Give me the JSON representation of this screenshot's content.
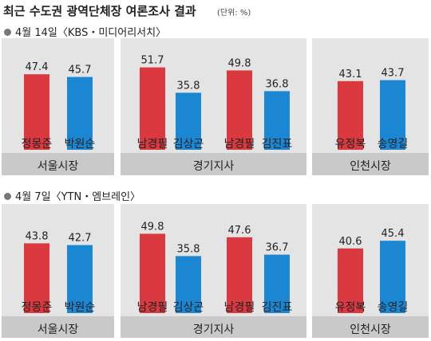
{
  "title": "최근 수도권 광역단체장 여론조사 결과",
  "unit": "(단위: %)",
  "colors": {
    "red": "#d9393f",
    "blue": "#1b87d2",
    "panel_bg": "#e4e4e4",
    "region_bar": "#c9c9c9"
  },
  "chart_data": {
    "type": "bar",
    "polls": [
      {
        "title": "4월 14일〈KBS・미디어리서치〉",
        "regions": [
          {
            "name": "서울시장",
            "candidates": [
              {
                "name": "정몽준",
                "value": 47.4,
                "party_color": "red"
              },
              {
                "name": "박원순",
                "value": 45.7,
                "party_color": "blue"
              }
            ]
          },
          {
            "name": "경기지사",
            "candidates": [
              {
                "name": "남경필",
                "value": 51.7,
                "party_color": "red"
              },
              {
                "name": "김상곤",
                "value": 35.8,
                "party_color": "blue"
              },
              {
                "name": "남경필",
                "value": 49.8,
                "party_color": "red"
              },
              {
                "name": "김진표",
                "value": 36.8,
                "party_color": "blue"
              }
            ]
          },
          {
            "name": "인천시장",
            "candidates": [
              {
                "name": "유정복",
                "value": 43.1,
                "party_color": "red"
              },
              {
                "name": "송영길",
                "value": 43.7,
                "party_color": "blue"
              }
            ]
          }
        ]
      },
      {
        "title": "4월 7일〈YTN・엠브레인〉",
        "regions": [
          {
            "name": "서울시장",
            "candidates": [
              {
                "name": "정몽준",
                "value": 43.8,
                "party_color": "red"
              },
              {
                "name": "박원순",
                "value": 42.7,
                "party_color": "blue"
              }
            ]
          },
          {
            "name": "경기지사",
            "candidates": [
              {
                "name": "남경필",
                "value": 49.8,
                "party_color": "red"
              },
              {
                "name": "김상곤",
                "value": 35.8,
                "party_color": "blue"
              },
              {
                "name": "남경필",
                "value": 47.6,
                "party_color": "red"
              },
              {
                "name": "김진표",
                "value": 36.7,
                "party_color": "blue"
              }
            ]
          },
          {
            "name": "인천시장",
            "candidates": [
              {
                "name": "유정복",
                "value": 40.6,
                "party_color": "red"
              },
              {
                "name": "송영길",
                "value": 45.4,
                "party_color": "blue"
              }
            ]
          }
        ]
      }
    ]
  }
}
